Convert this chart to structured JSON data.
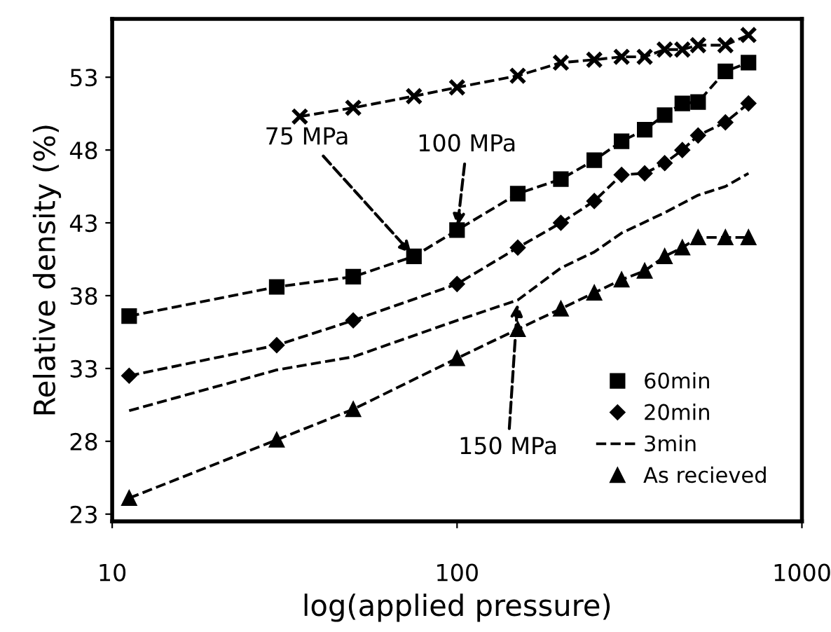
{
  "chart_data": {
    "type": "line",
    "xlabel": "log(applied pressure)",
    "ylabel": "Relative density (%)",
    "log": "x",
    "xlim": [
      10,
      1000
    ],
    "xticks": [
      10,
      100,
      1000
    ],
    "ylim": [
      22.5,
      57
    ],
    "yticks": [
      23,
      28,
      33,
      38,
      43,
      48,
      53
    ],
    "grid": false,
    "legend": "bottom right",
    "line_style": "dashed",
    "series": [
      {
        "name": "60min",
        "color": "#000000",
        "marker": "square",
        "x": [
          11.2,
          30,
          50,
          75,
          100,
          150,
          200,
          250,
          300,
          350,
          400,
          450,
          500,
          600,
          700
        ],
        "values": [
          36.6,
          38.6,
          39.3,
          40.7,
          42.5,
          45.0,
          46.0,
          47.3,
          48.6,
          49.4,
          50.4,
          51.2,
          51.3,
          53.4,
          54.0
        ]
      },
      {
        "name": "20min",
        "color": "#000000",
        "marker": "diamond",
        "x": [
          11.2,
          30,
          50,
          100,
          150,
          200,
          250,
          300,
          350,
          400,
          450,
          500,
          600,
          700
        ],
        "values": [
          32.5,
          34.6,
          36.3,
          38.8,
          41.3,
          43.0,
          44.5,
          46.3,
          46.4,
          47.1,
          48.0,
          49.0,
          49.9,
          51.2
        ]
      },
      {
        "name": "3min",
        "color": "#000000",
        "marker": "none",
        "x": [
          11.2,
          30,
          50,
          100,
          150,
          200,
          250,
          300,
          400,
          500,
          600,
          700
        ],
        "values": [
          30.1,
          32.9,
          33.8,
          36.3,
          37.7,
          39.9,
          41.0,
          42.3,
          43.7,
          44.9,
          45.5,
          46.4
        ]
      },
      {
        "name": "As recieved",
        "color": "#000000",
        "marker": "triangle",
        "x": [
          11.2,
          30,
          50,
          100,
          150,
          200,
          250,
          300,
          350,
          400,
          450,
          500,
          600,
          700
        ],
        "values": [
          24.1,
          28.1,
          30.2,
          33.7,
          35.7,
          37.1,
          38.2,
          39.1,
          39.7,
          40.7,
          41.3,
          42.0,
          42.0,
          42.0
        ]
      },
      {
        "color": "#000000",
        "marker": "cross",
        "x": [
          35,
          50,
          75,
          100,
          150,
          200,
          250,
          300,
          350,
          400,
          450,
          500,
          600,
          700
        ],
        "values": [
          50.3,
          50.9,
          51.7,
          52.3,
          53.1,
          54.0,
          54.2,
          54.4,
          54.4,
          54.9,
          54.9,
          55.2,
          55.2,
          55.9
        ]
      }
    ],
    "annotations": [
      {
        "text": "75 MPa",
        "x": 75,
        "y": 40.7
      },
      {
        "text": "100 MPa",
        "x": 100,
        "y": 42.5
      },
      {
        "text": "150 MPa",
        "x": 150,
        "y": 37.7
      }
    ]
  }
}
